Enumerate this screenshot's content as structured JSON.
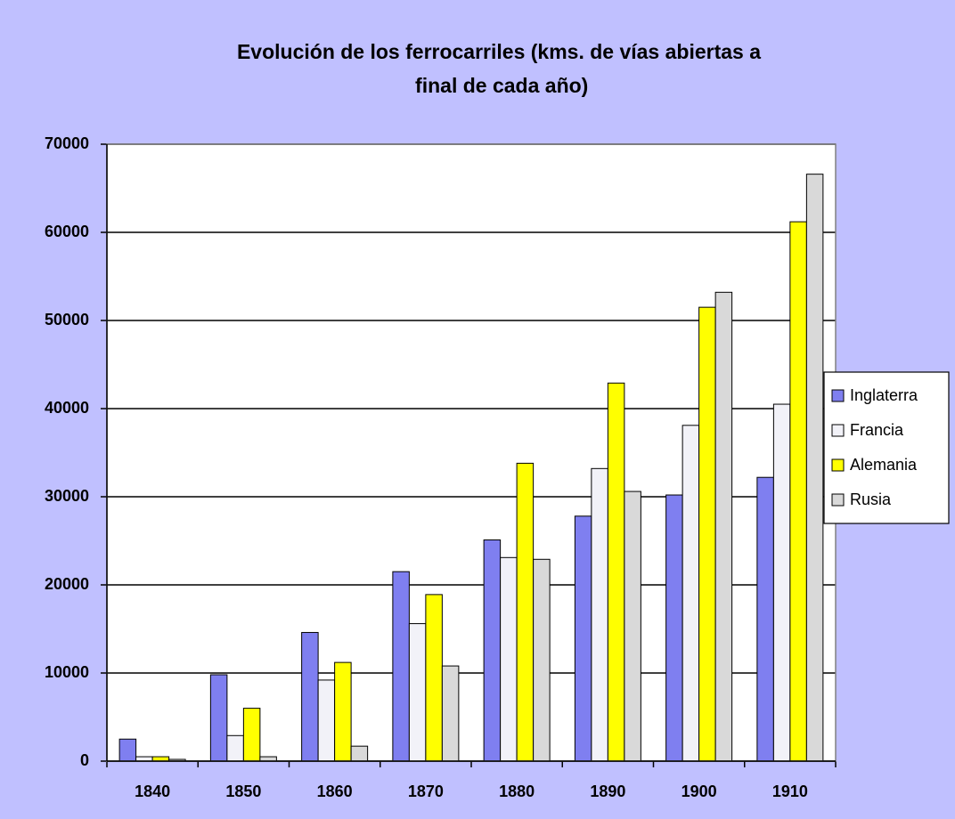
{
  "chart_data": {
    "type": "bar",
    "title": "Evolución de los ferrocarriles (kms. de vías abiertas a final de cada año)",
    "categories": [
      "1840",
      "1850",
      "1860",
      "1870",
      "1880",
      "1890",
      "1900",
      "1910"
    ],
    "series": [
      {
        "name": "Inglaterra",
        "color": "#7f7ff0",
        "values": [
          2500,
          9800,
          14600,
          21500,
          25100,
          27800,
          30200,
          32200
        ]
      },
      {
        "name": "Francia",
        "color": "#f2f2f8",
        "values": [
          500,
          2900,
          9200,
          15600,
          23100,
          33200,
          38100,
          40500
        ]
      },
      {
        "name": "Alemania",
        "color": "#ffff00",
        "values": [
          500,
          6000,
          11200,
          18900,
          33800,
          42900,
          51500,
          61200
        ]
      },
      {
        "name": "Rusia",
        "color": "#d9d9d9",
        "values": [
          200,
          500,
          1700,
          10800,
          22900,
          30600,
          53200,
          66600
        ]
      }
    ],
    "ylim": [
      0,
      70000
    ],
    "yticks": [
      0,
      10000,
      20000,
      30000,
      40000,
      50000,
      60000,
      70000
    ],
    "grid": true,
    "legend": "right"
  }
}
